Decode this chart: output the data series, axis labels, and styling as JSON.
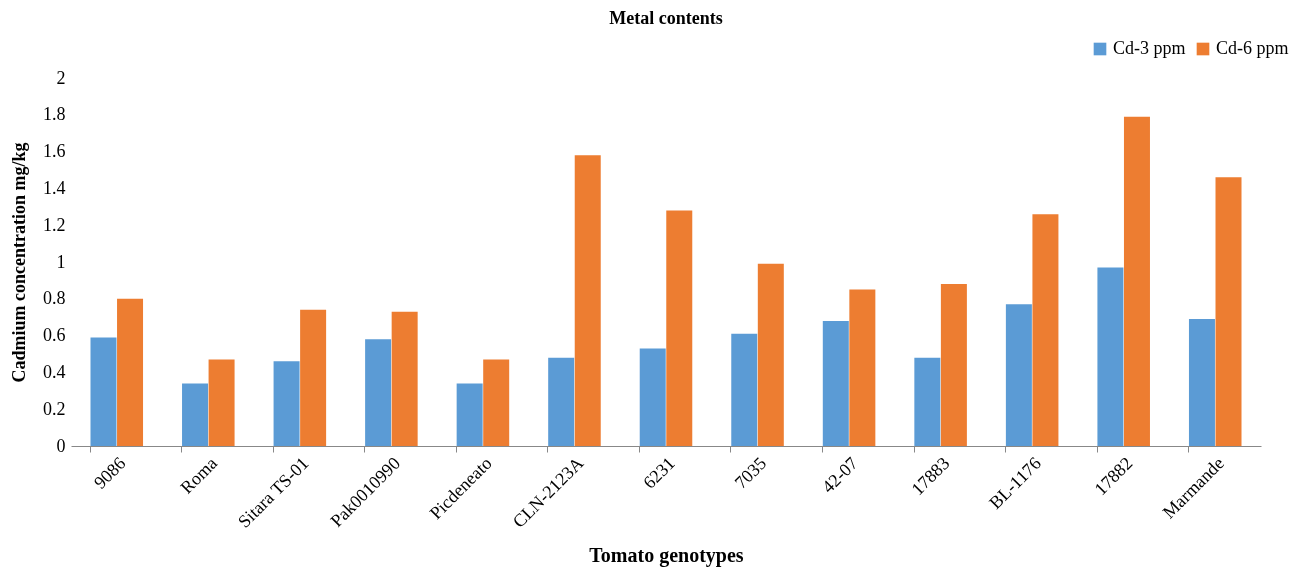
{
  "chart_data": {
    "type": "bar",
    "title": "Metal contents",
    "xlabel": "Tomato genotypes",
    "ylabel": "Cadmium concentration mg/kg",
    "categories": [
      "9086",
      "Roma",
      "Sitara TS-01",
      "Pak0010990",
      "Picdeneato",
      "CLN-2123A",
      "6231",
      "7035",
      "42-07",
      "17883",
      "BL-1176",
      "17882",
      "Marmande"
    ],
    "series": [
      {
        "name": "Cd-3 ppm",
        "color": "#5b9bd5",
        "values": [
          0.59,
          0.34,
          0.46,
          0.58,
          0.34,
          0.48,
          0.53,
          0.61,
          0.68,
          0.48,
          0.77,
          0.97,
          0.69
        ]
      },
      {
        "name": "Cd-6 ppm",
        "color": "#ed7d31",
        "values": [
          0.8,
          0.47,
          0.74,
          0.73,
          0.47,
          1.58,
          1.28,
          0.99,
          0.85,
          0.88,
          1.26,
          1.79,
          1.46
        ]
      }
    ],
    "ylim": [
      0,
      2
    ],
    "yticks": [
      0,
      0.2,
      0.4,
      0.6,
      0.8,
      1,
      1.2,
      1.4,
      1.6,
      1.8,
      2
    ],
    "grid": false,
    "legend": "top right"
  }
}
